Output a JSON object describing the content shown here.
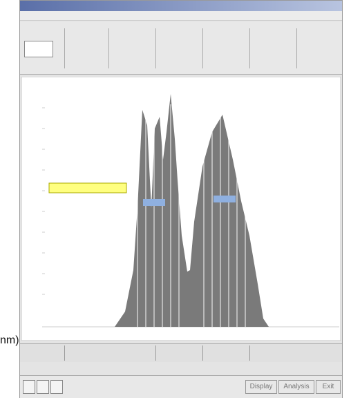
{
  "status_text": "nm)",
  "buttons": [
    "Display",
    "Analysis",
    "Exit"
  ]
}
